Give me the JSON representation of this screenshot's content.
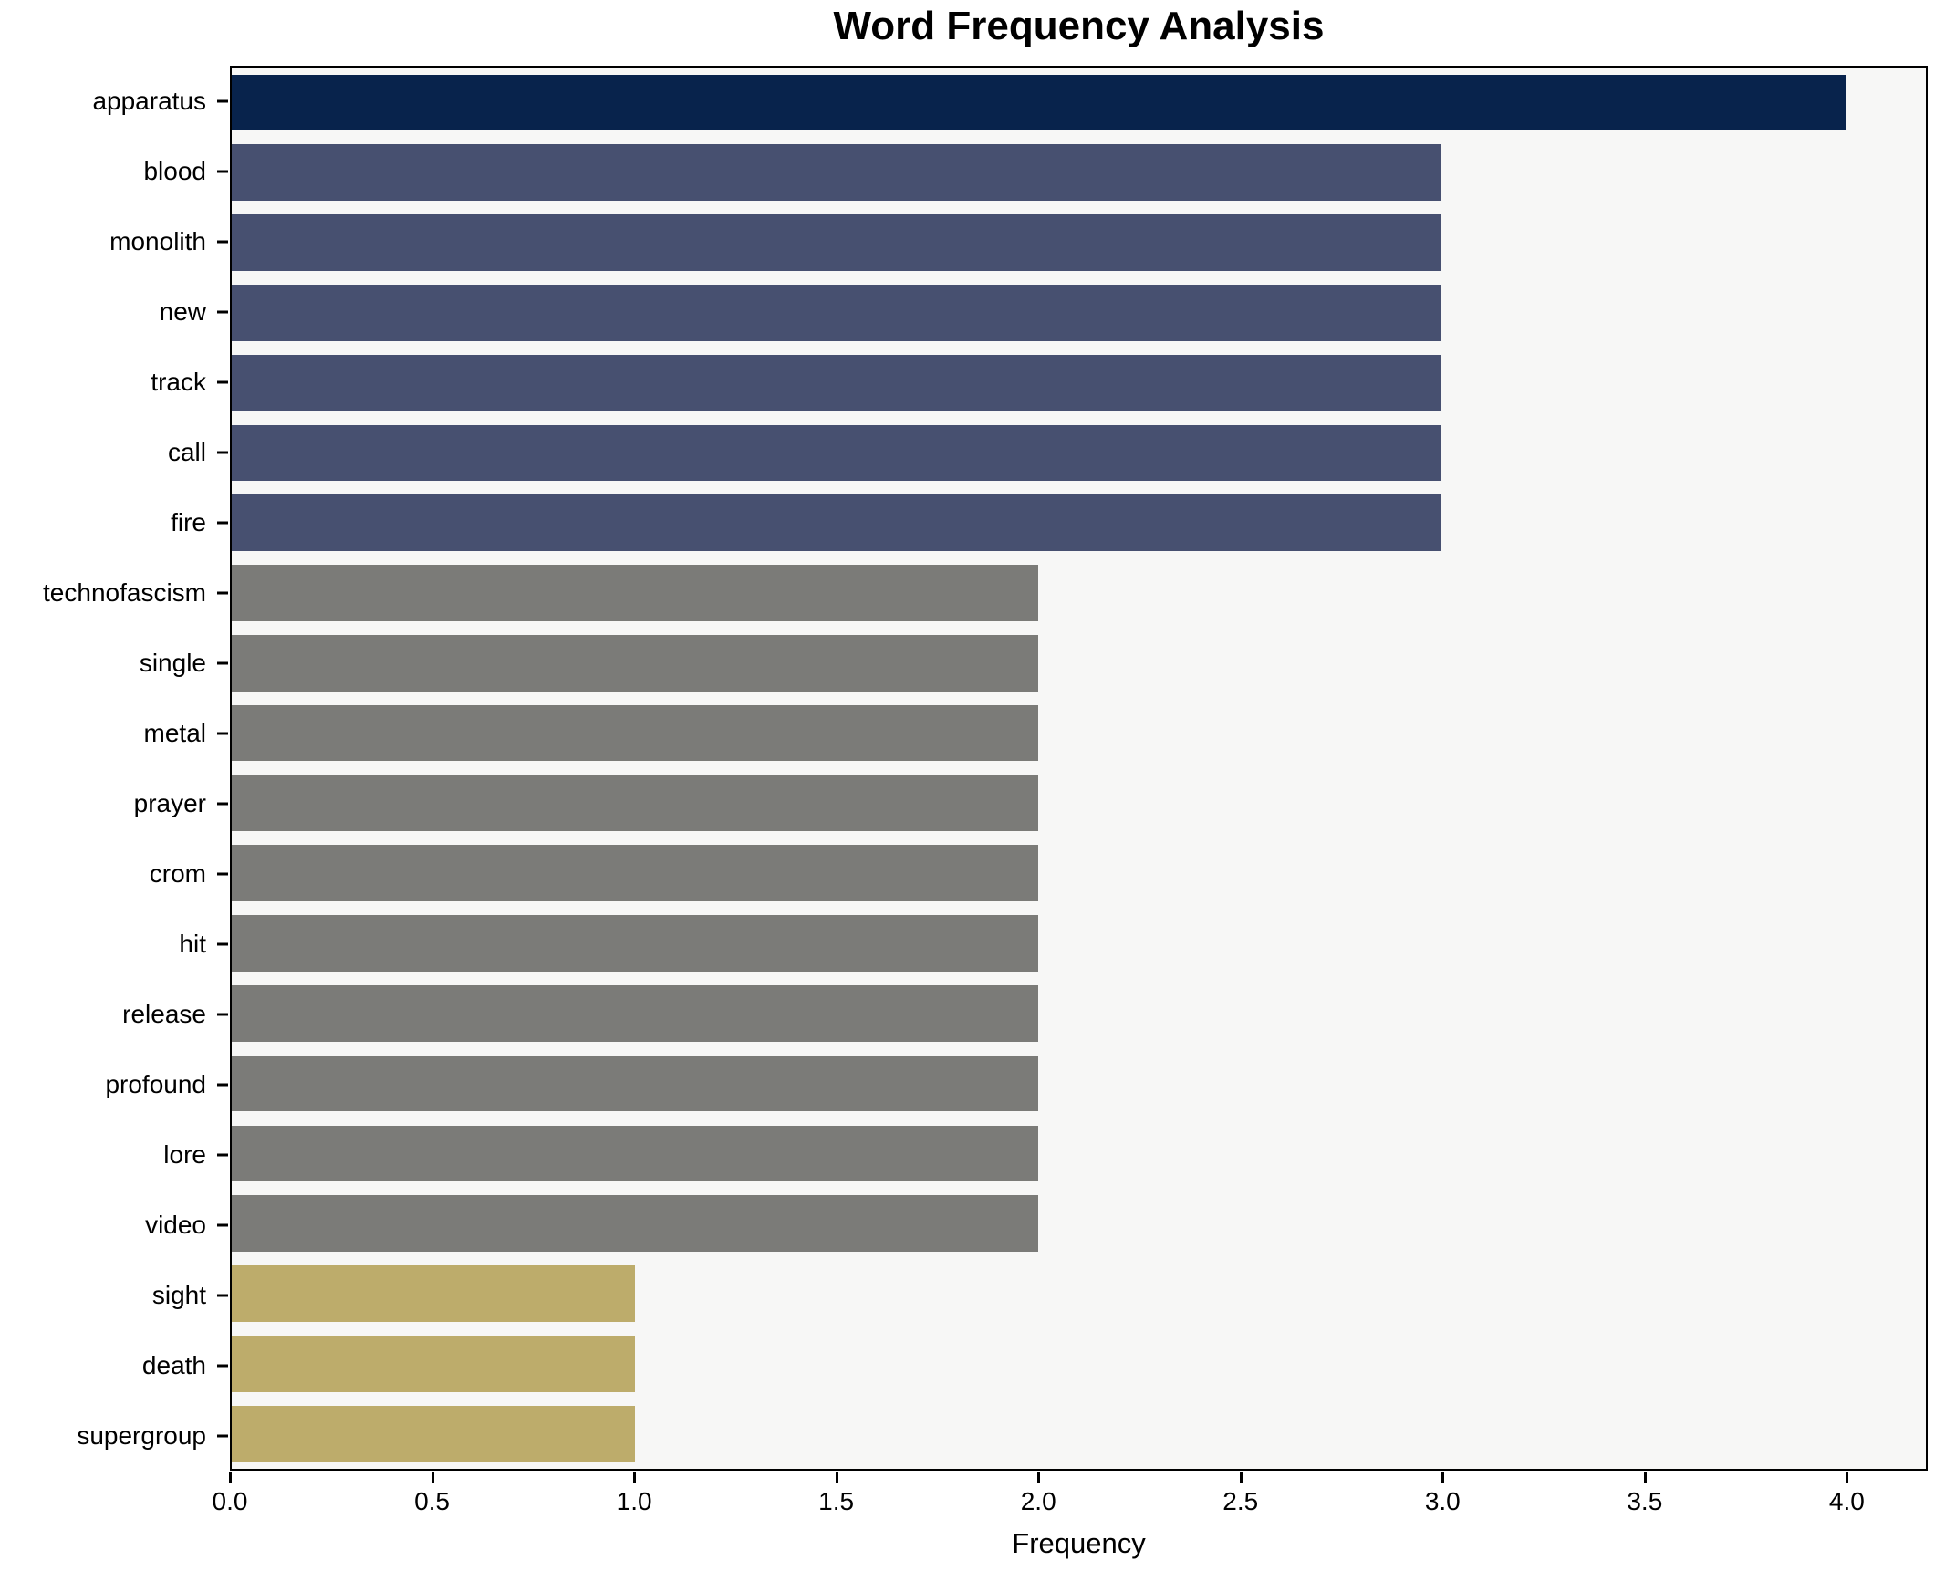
{
  "chart_data": {
    "type": "bar",
    "orientation": "horizontal",
    "title": "Word Frequency Analysis",
    "xlabel": "Frequency",
    "ylabel": "",
    "xlim": [
      0,
      4.2
    ],
    "xticks": [
      "0.0",
      "0.5",
      "1.0",
      "1.5",
      "2.0",
      "2.5",
      "3.0",
      "3.5",
      "4.0"
    ],
    "grid": false,
    "legend": false,
    "plot_background": "#f7f7f6",
    "figure_background": "#ffffff",
    "spine_color": "#000000",
    "group_colors": {
      "freq_4": "#08234c",
      "freq_3": "#475070",
      "freq_2": "#7b7b78",
      "freq_1": "#bdac6b"
    },
    "categories": [
      "apparatus",
      "blood",
      "monolith",
      "new",
      "track",
      "call",
      "fire",
      "technofascism",
      "single",
      "metal",
      "prayer",
      "crom",
      "hit",
      "release",
      "profound",
      "lore",
      "video",
      "sight",
      "death",
      "supergroup"
    ],
    "values": [
      4,
      3,
      3,
      3,
      3,
      3,
      3,
      2,
      2,
      2,
      2,
      2,
      2,
      2,
      2,
      2,
      2,
      1,
      1,
      1
    ],
    "bars": [
      {
        "word": "apparatus",
        "value": 4,
        "color": "#08234c"
      },
      {
        "word": "blood",
        "value": 3,
        "color": "#475070"
      },
      {
        "word": "monolith",
        "value": 3,
        "color": "#475070"
      },
      {
        "word": "new",
        "value": 3,
        "color": "#475070"
      },
      {
        "word": "track",
        "value": 3,
        "color": "#475070"
      },
      {
        "word": "call",
        "value": 3,
        "color": "#475070"
      },
      {
        "word": "fire",
        "value": 3,
        "color": "#475070"
      },
      {
        "word": "technofascism",
        "value": 2,
        "color": "#7b7b78"
      },
      {
        "word": "single",
        "value": 2,
        "color": "#7b7b78"
      },
      {
        "word": "metal",
        "value": 2,
        "color": "#7b7b78"
      },
      {
        "word": "prayer",
        "value": 2,
        "color": "#7b7b78"
      },
      {
        "word": "crom",
        "value": 2,
        "color": "#7b7b78"
      },
      {
        "word": "hit",
        "value": 2,
        "color": "#7b7b78"
      },
      {
        "word": "release",
        "value": 2,
        "color": "#7b7b78"
      },
      {
        "word": "profound",
        "value": 2,
        "color": "#7b7b78"
      },
      {
        "word": "lore",
        "value": 2,
        "color": "#7b7b78"
      },
      {
        "word": "video",
        "value": 2,
        "color": "#7b7b78"
      },
      {
        "word": "sight",
        "value": 1,
        "color": "#bdac6b"
      },
      {
        "word": "death",
        "value": 1,
        "color": "#bdac6b"
      },
      {
        "word": "supergroup",
        "value": 1,
        "color": "#bdac6b"
      }
    ]
  }
}
